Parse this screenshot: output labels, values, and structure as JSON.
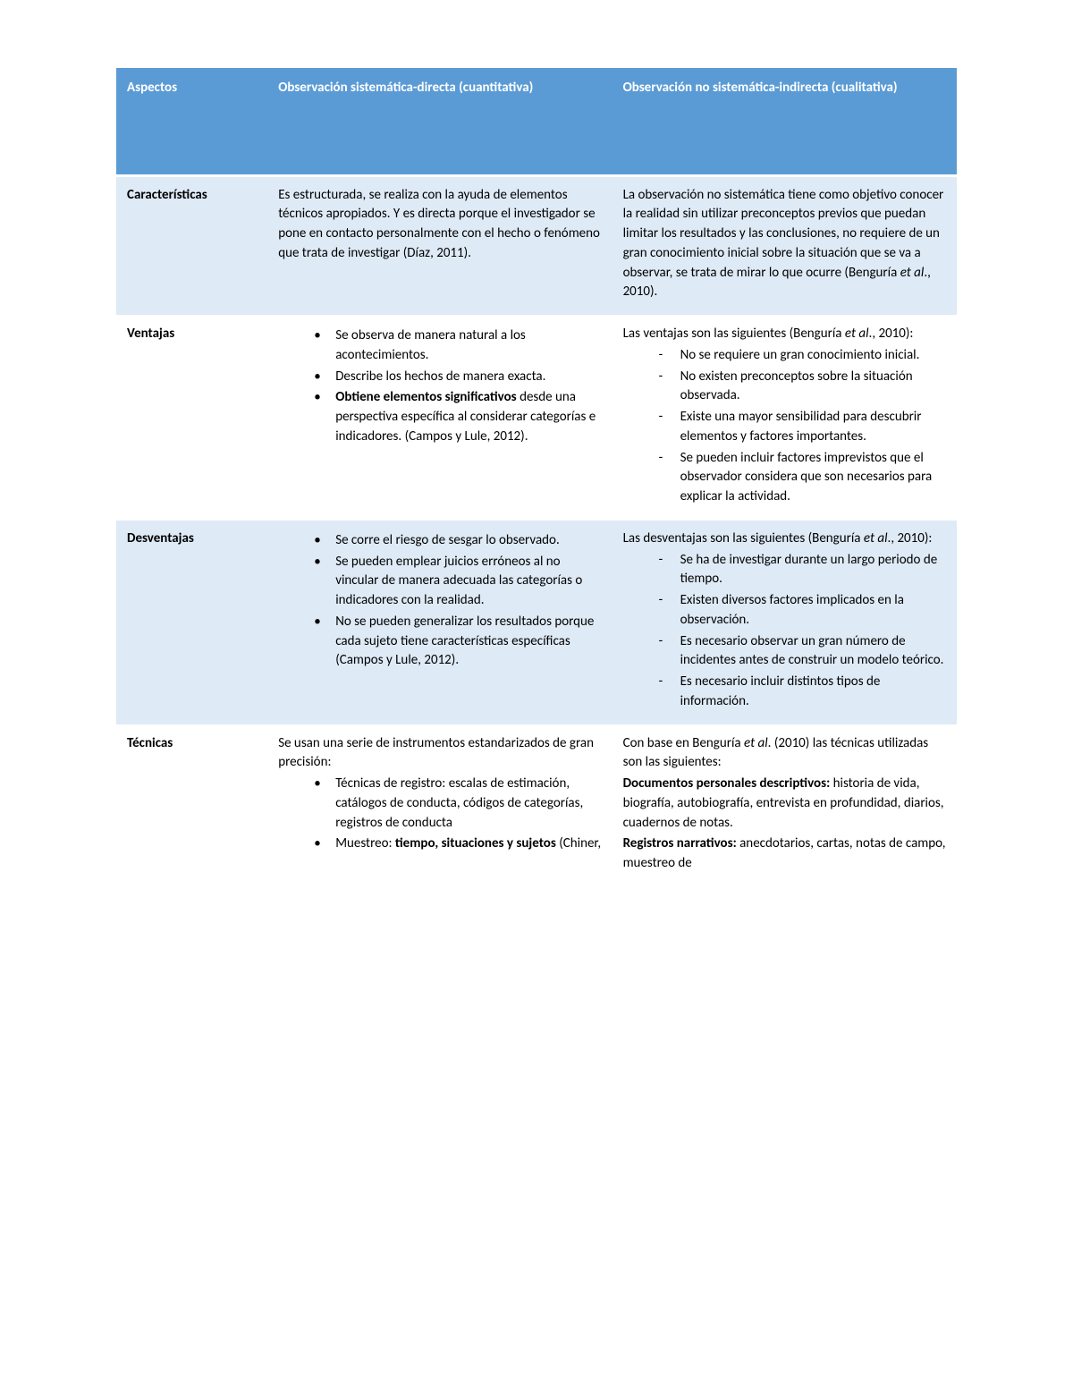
{
  "table": {
    "header_bg": "#5b9bd5",
    "header_text_color": "#ffffff",
    "row_odd_bg": "#deeaf6",
    "row_even_bg": "#ffffff",
    "border_color": "#ffffff",
    "font_family": "Calibri",
    "body_fontsize_pt": 11,
    "header_fontsize_pt": 11,
    "columns": [
      {
        "key": "aspect",
        "label": "Aspectos",
        "width_pct": 18
      },
      {
        "key": "direct",
        "label": "Observación sistemática-directa (cuantitativa)",
        "width_pct": 41
      },
      {
        "key": "indirect",
        "label": "Observación no sistemática-indirecta (cualitativa)",
        "width_pct": 41
      }
    ],
    "rows": [
      {
        "aspect": "Características",
        "direct": {
          "type": "text",
          "text": "Es estructurada, se realiza con la ayuda de elementos técnicos apropiados. Y es directa porque el investigador se pone en contacto personalmente con el hecho o fenómeno que trata de investigar (Díaz, 2011)."
        },
        "indirect": {
          "type": "text_with_italic",
          "before": "La observación no sistemática tiene como objetivo conocer la realidad sin utilizar preconceptos previos que puedan limitar los resultados y las conclusiones, no requiere de un gran conocimiento inicial sobre la situación que se va a observar, se trata de mirar lo que ocurre (Benguría ",
          "italic": "et al",
          "after": "., 2010)."
        }
      },
      {
        "aspect": "Ventajas",
        "direct": {
          "type": "bullets",
          "items": [
            {
              "parts": [
                {
                  "t": "Se observa de manera natural a los acontecimientos."
                }
              ]
            },
            {
              "parts": [
                {
                  "t": "Describe los hechos de manera exacta."
                }
              ]
            },
            {
              "parts": [
                {
                  "t": "Obtiene elementos significativos",
                  "bold": true
                },
                {
                  "t": " desde una perspectiva específica al considerar categorías e indicadores. (Campos y Lule, 2012)."
                }
              ]
            }
          ]
        },
        "indirect": {
          "type": "lead_dashes",
          "lead_parts": [
            {
              "t": "Las ventajas son las siguientes (Benguría "
            },
            {
              "t": "et al",
              "italic": true
            },
            {
              "t": "., 2010):"
            }
          ],
          "items": [
            "No se requiere un gran conocimiento inicial.",
            "No existen preconceptos sobre la situación observada.",
            "Existe una mayor sensibilidad para descubrir elementos y factores importantes.",
            "Se pueden incluir factores imprevistos que el observador considera que son necesarios para explicar la actividad."
          ]
        }
      },
      {
        "aspect": "Desventajas",
        "direct": {
          "type": "bullets",
          "items": [
            {
              "parts": [
                {
                  "t": "Se corre el riesgo de sesgar lo observado."
                }
              ]
            },
            {
              "parts": [
                {
                  "t": "Se pueden emplear juicios erróneos al no vincular de manera adecuada las categorías o indicadores con la realidad."
                }
              ]
            },
            {
              "parts": [
                {
                  "t": " No se pueden generalizar los resultados porque cada sujeto tiene características específicas (Campos y Lule, 2012)."
                }
              ]
            }
          ]
        },
        "indirect": {
          "type": "lead_dashes",
          "lead_parts": [
            {
              "t": "Las desventajas son las siguientes (Benguría "
            },
            {
              "t": "et al",
              "italic": true
            },
            {
              "t": "., 2010):"
            }
          ],
          "items": [
            "Se ha de investigar durante un largo periodo de tiempo.",
            "Existen diversos factores implicados en la observación.",
            "Es necesario observar un gran número de incidentes antes de construir un modelo teórico.",
            "Es necesario incluir distintos tipos de información."
          ]
        }
      },
      {
        "aspect": "Técnicas",
        "direct": {
          "type": "lead_bullets",
          "lead": "Se usan una serie de instrumentos estandarizados de gran precisión:",
          "items": [
            {
              "parts": [
                {
                  "t": "Técnicas de registro: "
                },
                {
                  "t": "escalas de estimación, catálogos de conducta, códigos de categorías, registros de conducta"
                }
              ]
            },
            {
              "parts": [
                {
                  "t": "Muestreo: "
                },
                {
                  "t": "tiempo, situaciones y sujetos",
                  "bold": true
                },
                {
                  "t": " (Chiner,"
                }
              ]
            }
          ]
        },
        "indirect": {
          "type": "rich_paras",
          "paras": [
            [
              {
                "t": "Con base en Benguría "
              },
              {
                "t": "et al",
                "italic": true
              },
              {
                "t": ". (2010) las técnicas utilizadas son las siguientes:"
              }
            ],
            [
              {
                "t": "Documentos personales descriptivos: ",
                "bold": true
              },
              {
                "t": "historia de vida, biografía, autobiografía, entrevista en profundidad, diarios, cuadernos de notas."
              }
            ],
            [
              {
                "t": "Registros narrativos: ",
                "bold": true
              },
              {
                "t": "anecdotarios, cartas, notas de campo, muestreo de"
              }
            ]
          ]
        }
      }
    ]
  }
}
